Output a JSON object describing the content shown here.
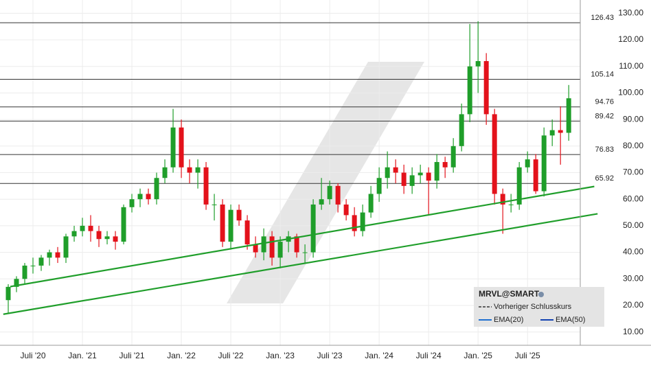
{
  "chart_data": {
    "type": "candlestick",
    "x": [
      3,
      4,
      5,
      6,
      7,
      8,
      9,
      10,
      11,
      12,
      13,
      14,
      15,
      16,
      17,
      18,
      19,
      20,
      21,
      22,
      23,
      24,
      25,
      26,
      27,
      28,
      29,
      30,
      31,
      32,
      33,
      34,
      35,
      36,
      37,
      38,
      39,
      40,
      41,
      42,
      43,
      44,
      45,
      46,
      47,
      48,
      49,
      50,
      51,
      52,
      53,
      54,
      55,
      56,
      57,
      58,
      59,
      60,
      61,
      62,
      63,
      64,
      65,
      66,
      67,
      68,
      69,
      70,
      71
    ],
    "open": [
      22,
      27,
      30,
      35,
      35,
      38,
      40,
      38,
      46,
      48,
      50,
      48,
      45,
      46,
      44,
      57,
      60,
      62,
      60,
      68,
      72,
      87,
      72,
      70,
      72,
      58,
      58,
      44,
      56,
      52,
      43,
      40,
      46,
      38,
      44,
      46,
      40,
      40,
      58,
      60,
      65,
      58,
      54,
      48,
      55,
      62,
      68,
      72,
      70,
      65,
      69,
      70,
      67,
      74,
      72,
      80,
      92,
      110,
      112,
      92,
      62,
      58,
      58,
      72,
      75,
      63,
      84,
      86,
      85
    ],
    "high": [
      28,
      31,
      36,
      38,
      39,
      41,
      42,
      47,
      50,
      53,
      54,
      50,
      48,
      48,
      58,
      62,
      64,
      64,
      70,
      75,
      94,
      90,
      75,
      75,
      74,
      62,
      60,
      58,
      58,
      54,
      46,
      49,
      48,
      46,
      48,
      47,
      43,
      60,
      68,
      67,
      66,
      60,
      57,
      58,
      65,
      72,
      78,
      75,
      73,
      72,
      73,
      72,
      77,
      76,
      83,
      96,
      126,
      127,
      115,
      94,
      64,
      62,
      74,
      78,
      77,
      87,
      90,
      95,
      103
    ],
    "low": [
      17,
      25,
      28,
      32,
      33,
      35,
      36,
      36,
      44,
      46,
      44,
      42,
      43,
      41,
      43,
      55,
      57,
      58,
      58,
      66,
      70,
      68,
      66,
      64,
      56,
      52,
      42,
      41,
      50,
      41,
      38,
      37,
      35,
      34,
      40,
      38,
      36,
      38,
      56,
      58,
      55,
      52,
      46,
      46,
      53,
      59,
      64,
      66,
      62,
      62,
      66,
      54,
      64,
      68,
      70,
      78,
      89,
      100,
      88,
      58,
      47,
      55,
      56,
      70,
      62,
      61,
      80,
      73,
      82
    ],
    "close": [
      27,
      30,
      35,
      35,
      38,
      40,
      38,
      46,
      48,
      50,
      48,
      45,
      46,
      44,
      57,
      60,
      62,
      60,
      68,
      72,
      87,
      72,
      70,
      72,
      58,
      58,
      44,
      56,
      52,
      43,
      40,
      46,
      38,
      44,
      46,
      40,
      40,
      58,
      60,
      65,
      58,
      54,
      48,
      55,
      62,
      68,
      72,
      70,
      65,
      69,
      70,
      67,
      74,
      72,
      80,
      92,
      110,
      112,
      92,
      62,
      58,
      58,
      72,
      75,
      63,
      84,
      86,
      85,
      98
    ],
    "up_color": "#1f9e2a",
    "down_color": "#e3121b",
    "xlim": [
      2,
      72.4
    ],
    "xticks": [
      {
        "value": 6,
        "label": "Juli '20"
      },
      {
        "value": 12,
        "label": "Jan. '21"
      },
      {
        "value": 18,
        "label": "Juli '21"
      },
      {
        "value": 24,
        "label": "Jan. '22"
      },
      {
        "value": 30,
        "label": "Juli '22"
      },
      {
        "value": 36,
        "label": "Jan. '23"
      },
      {
        "value": 42,
        "label": "Juli '23"
      },
      {
        "value": 48,
        "label": "Jan. '24"
      },
      {
        "value": 54,
        "label": "Juli '24"
      },
      {
        "value": 60,
        "label": "Jan. '25"
      },
      {
        "value": 66,
        "label": "Juli '25"
      }
    ],
    "ylim": [
      5,
      135
    ],
    "yticks": [
      {
        "value": 10,
        "label": "10.00"
      },
      {
        "value": 20,
        "label": "20.00"
      },
      {
        "value": 30,
        "label": "30.00"
      },
      {
        "value": 40,
        "label": "40.00"
      },
      {
        "value": 50,
        "label": "50.00"
      },
      {
        "value": 60,
        "label": "60.00"
      },
      {
        "value": 70,
        "label": "70.00"
      },
      {
        "value": 80,
        "label": "80.00"
      },
      {
        "value": 90,
        "label": "90.00"
      },
      {
        "value": 100,
        "label": "100.00"
      },
      {
        "value": 110,
        "label": "110.00"
      },
      {
        "value": 120,
        "label": "120.00"
      },
      {
        "value": 130,
        "label": "130.00"
      }
    ],
    "grid": true,
    "levels": [
      126.43,
      105.14,
      94.76,
      89.42,
      76.83,
      65.92
    ],
    "trendlines": [
      {
        "x": [
          3.25,
          74.1
        ],
        "y": [
          27.1,
          64.8
        ],
        "color": "#1f9e2a"
      },
      {
        "x": [
          2.4,
          74.5
        ],
        "y": [
          16.7,
          54.5
        ],
        "color": "#1f9e2a"
      }
    ],
    "legend": {
      "title": "MRVL@SMART",
      "items": [
        "Vorheriger Schlusskurs",
        "EMA(20)",
        "EMA(50)"
      ]
    }
  }
}
